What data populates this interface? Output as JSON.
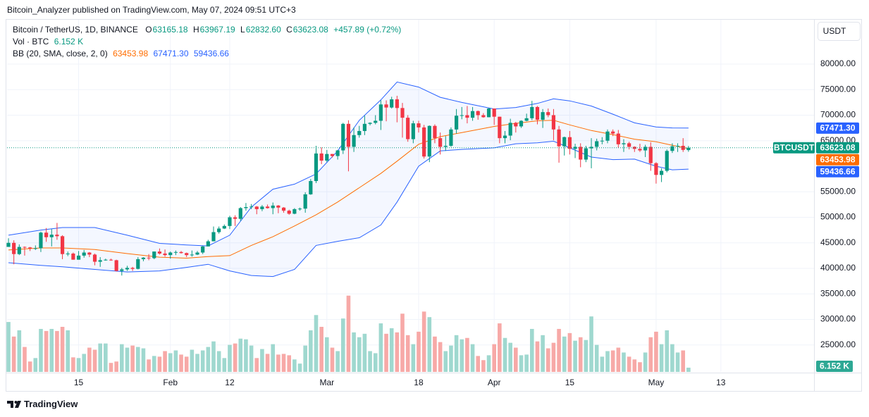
{
  "published": "Bitcoin_Analyzer published on TradingView.com, May 07, 2024 09:51 UTC+3",
  "footer": "TradingView",
  "chart_data": {
    "type": "candlestick",
    "currency": "USDT",
    "symbol_short": "BTCUSDT",
    "legend": {
      "symbol": "Bitcoin / TetherUS, 1D, BINANCE",
      "ohlc_labels": [
        "O",
        "H",
        "L",
        "C"
      ],
      "ohlc_values": [
        "63165.18",
        "63967.19",
        "62832.60",
        "63623.08"
      ],
      "change": "+457.89 (+0.72%)",
      "volume_title": "Vol · BTC",
      "volume_value": "6.152 K",
      "bb_title": "BB (20, SMA, close, 2, 0)",
      "bb_values": [
        "63453.98",
        "67471.30",
        "59436.66"
      ]
    },
    "up_color": "#089981",
    "down_color": "#f23645",
    "volume_up_color": "#9fd8cf",
    "volume_down_color": "#f7a9a7",
    "band_color": "#2962ff",
    "middle_color": "#ff6d00",
    "grid": true,
    "x": [
      "2024-01-02",
      "2024-01-03",
      "2024-01-04",
      "2024-01-05",
      "2024-01-06",
      "2024-01-07",
      "2024-01-08",
      "2024-01-09",
      "2024-01-10",
      "2024-01-11",
      "2024-01-12",
      "2024-01-13",
      "2024-01-14",
      "2024-01-15",
      "2024-01-16",
      "2024-01-17",
      "2024-01-18",
      "2024-01-19",
      "2024-01-20",
      "2024-01-21",
      "2024-01-22",
      "2024-01-23",
      "2024-01-24",
      "2024-01-25",
      "2024-01-26",
      "2024-01-27",
      "2024-01-28",
      "2024-01-29",
      "2024-01-30",
      "2024-01-31",
      "2024-02-01",
      "2024-02-02",
      "2024-02-03",
      "2024-02-04",
      "2024-02-05",
      "2024-02-06",
      "2024-02-07",
      "2024-02-08",
      "2024-02-09",
      "2024-02-10",
      "2024-02-11",
      "2024-02-12",
      "2024-02-13",
      "2024-02-14",
      "2024-02-15",
      "2024-02-16",
      "2024-02-17",
      "2024-02-18",
      "2024-02-19",
      "2024-02-20",
      "2024-02-21",
      "2024-02-22",
      "2024-02-23",
      "2024-02-24",
      "2024-02-25",
      "2024-02-26",
      "2024-02-27",
      "2024-02-28",
      "2024-02-29",
      "2024-03-01",
      "2024-03-02",
      "2024-03-03",
      "2024-03-04",
      "2024-03-05",
      "2024-03-06",
      "2024-03-07",
      "2024-03-08",
      "2024-03-09",
      "2024-03-10",
      "2024-03-11",
      "2024-03-12",
      "2024-03-13",
      "2024-03-14",
      "2024-03-15",
      "2024-03-16",
      "2024-03-17",
      "2024-03-18",
      "2024-03-19",
      "2024-03-20",
      "2024-03-21",
      "2024-03-22",
      "2024-03-23",
      "2024-03-24",
      "2024-03-25",
      "2024-03-26",
      "2024-03-27",
      "2024-03-28",
      "2024-03-29",
      "2024-03-30",
      "2024-03-31",
      "2024-04-01",
      "2024-04-02",
      "2024-04-03",
      "2024-04-04",
      "2024-04-05",
      "2024-04-06",
      "2024-04-07",
      "2024-04-08",
      "2024-04-09",
      "2024-04-10",
      "2024-04-11",
      "2024-04-12",
      "2024-04-13",
      "2024-04-14",
      "2024-04-15",
      "2024-04-16",
      "2024-04-17",
      "2024-04-18",
      "2024-04-19",
      "2024-04-20",
      "2024-04-21",
      "2024-04-22",
      "2024-04-23",
      "2024-04-24",
      "2024-04-25",
      "2024-04-26",
      "2024-04-27",
      "2024-04-28",
      "2024-04-29",
      "2024-04-30",
      "2024-05-01",
      "2024-05-02",
      "2024-05-03",
      "2024-05-04",
      "2024-05-05",
      "2024-05-06",
      "2024-05-07"
    ],
    "open": [
      44200,
      45000,
      42800,
      44200,
      44100,
      43900,
      43950,
      47000,
      46100,
      46600,
      46300,
      42800,
      42900,
      41700,
      42500,
      43100,
      42700,
      41300,
      41600,
      41700,
      41600,
      39500,
      39800,
      40100,
      39900,
      41800,
      42100,
      42000,
      43300,
      42900,
      42600,
      43100,
      43200,
      43000,
      42600,
      42700,
      43100,
      44300,
      45300,
      47100,
      47800,
      48300,
      50000,
      49700,
      51800,
      52000,
      52100,
      51600,
      52100,
      51800,
      52300,
      51900,
      51300,
      50700,
      51600,
      51700,
      54500,
      57100,
      62500,
      61100,
      62400,
      62000,
      63100,
      68300,
      63800,
      66100,
      66900,
      68300,
      68500,
      68900,
      72100,
      71500,
      73100,
      71400,
      69500,
      65300,
      68400,
      67600,
      61900,
      67900,
      65500,
      63800,
      64000,
      67200,
      69900,
      70000,
      69500,
      70800,
      70000,
      69600,
      71300,
      69700,
      65500,
      66000,
      68500,
      67800,
      68900,
      69400,
      71600,
      69100,
      70600,
      70000,
      67200,
      63900,
      65700,
      63400,
      63800,
      61300,
      63500,
      63800,
      64900,
      65000,
      66800,
      66400,
      64300,
      64500,
      63800,
      63400,
      63100,
      63800,
      60600,
      58300,
      59100,
      63000,
      63900,
      64000,
      63165.18
    ],
    "high": [
      45900,
      45500,
      44700,
      44300,
      44200,
      44500,
      47200,
      47900,
      47700,
      48900,
      46500,
      43300,
      43100,
      43400,
      43600,
      43200,
      42900,
      42200,
      41900,
      41900,
      41700,
      40100,
      40500,
      40300,
      42200,
      42200,
      42800,
      43300,
      43900,
      43700,
      43300,
      43500,
      43400,
      43100,
      43500,
      43400,
      44400,
      45600,
      48200,
      48200,
      48600,
      50300,
      50400,
      52000,
      52800,
      52600,
      52200,
      52400,
      52500,
      52900,
      52400,
      52000,
      51500,
      51800,
      51900,
      54900,
      57500,
      64000,
      63700,
      63200,
      62400,
      63200,
      68500,
      69000,
      67600,
      67900,
      69900,
      68600,
      70000,
      72900,
      72900,
      73600,
      73800,
      72400,
      70000,
      68900,
      68900,
      68100,
      68000,
      68200,
      66600,
      65900,
      67600,
      71200,
      71600,
      71800,
      71600,
      70900,
      70400,
      71400,
      71300,
      69700,
      66900,
      69300,
      68700,
      69000,
      70300,
      72800,
      71800,
      71200,
      71300,
      71200,
      67900,
      65800,
      66900,
      64400,
      64500,
      64000,
      65500,
      65400,
      65700,
      67200,
      67200,
      67100,
      65300,
      64800,
      63900,
      64400,
      64200,
      64700,
      60800,
      59600,
      63300,
      64500,
      64500,
      65500,
      63967.19
    ],
    "low": [
      44200,
      40800,
      42600,
      42500,
      43400,
      43600,
      43200,
      45200,
      44300,
      45600,
      41800,
      42400,
      41700,
      41700,
      42100,
      42200,
      40600,
      40300,
      41500,
      41500,
      39400,
      38600,
      39500,
      39500,
      39800,
      41400,
      41600,
      41800,
      42700,
      42300,
      41900,
      42600,
      42900,
      42200,
      42300,
      42600,
      42800,
      44300,
      45300,
      46800,
      47700,
      47700,
      48300,
      49300,
      51300,
      51600,
      50600,
      51200,
      51700,
      50600,
      50800,
      50900,
      50500,
      50600,
      51300,
      50900,
      54400,
      56700,
      60400,
      60800,
      61700,
      61300,
      62400,
      59000,
      62800,
      65600,
      66100,
      68000,
      68200,
      67100,
      68800,
      71300,
      68600,
      65600,
      64800,
      64500,
      66600,
      61500,
      60800,
      64500,
      62300,
      63000,
      63800,
      66400,
      69200,
      68400,
      68900,
      69100,
      69500,
      69600,
      68100,
      64500,
      64500,
      65100,
      66600,
      67500,
      68800,
      69000,
      68200,
      67500,
      69600,
      65100,
      60700,
      62100,
      62300,
      61600,
      59800,
      60800,
      59600,
      63100,
      64300,
      64500,
      65900,
      63600,
      62800,
      63300,
      62800,
      62800,
      61800,
      59100,
      56600,
      56900,
      58800,
      62600,
      62800,
      62800,
      62832.6
    ],
    "close": [
      45000,
      42800,
      44200,
      44100,
      43900,
      43950,
      47000,
      46100,
      46600,
      46300,
      42800,
      42900,
      41700,
      42500,
      43100,
      42700,
      41300,
      41600,
      41700,
      41600,
      39500,
      39800,
      40100,
      39900,
      41800,
      42100,
      42000,
      43300,
      42900,
      42600,
      43100,
      43200,
      43000,
      42600,
      42700,
      43100,
      44300,
      45300,
      47100,
      47800,
      48300,
      50000,
      49700,
      51800,
      52000,
      52100,
      51600,
      52100,
      51800,
      52300,
      51900,
      51300,
      50700,
      51600,
      51700,
      54500,
      57100,
      62500,
      61100,
      62400,
      62000,
      63100,
      68300,
      63800,
      66100,
      66900,
      68300,
      68500,
      68900,
      72100,
      71500,
      73100,
      71400,
      69500,
      65300,
      68400,
      67600,
      61900,
      67900,
      65500,
      63800,
      64000,
      67200,
      69900,
      70000,
      69500,
      70800,
      70000,
      69600,
      71300,
      69700,
      65500,
      66000,
      68500,
      67800,
      68900,
      69400,
      71600,
      69100,
      70600,
      70000,
      67200,
      63900,
      65700,
      63400,
      63800,
      61300,
      63500,
      63800,
      64900,
      65000,
      66800,
      66400,
      64300,
      64500,
      63800,
      63400,
      63100,
      63800,
      60600,
      58300,
      59100,
      63000,
      63900,
      64000,
      63200,
      63623.08
    ],
    "volume": [
      72,
      51,
      60,
      36,
      15,
      20,
      62,
      59,
      62,
      59,
      65,
      60,
      21,
      20,
      26,
      35,
      32,
      41,
      41,
      13,
      15,
      40,
      35,
      38,
      36,
      34,
      18,
      23,
      22,
      30,
      27,
      31,
      25,
      22,
      32,
      26,
      31,
      36,
      44,
      30,
      20,
      39,
      41,
      48,
      47,
      38,
      20,
      33,
      26,
      40,
      25,
      26,
      24,
      18,
      12,
      38,
      60,
      82,
      65,
      50,
      35,
      30,
      77,
      110,
      57,
      50,
      55,
      30,
      27,
      70,
      55,
      63,
      57,
      84,
      53,
      40,
      58,
      87,
      79,
      51,
      43,
      30,
      38,
      53,
      47,
      49,
      40,
      23,
      17,
      24,
      40,
      70,
      49,
      42,
      35,
      24,
      25,
      62,
      44,
      53,
      34,
      42,
      62,
      51,
      56,
      45,
      50,
      46,
      80,
      39,
      22,
      30,
      31,
      35,
      28,
      22,
      18,
      14,
      28,
      50,
      58,
      40,
      60,
      40,
      28,
      31,
      6.152
    ],
    "volume_lim": [
      0,
      130
    ],
    "bands": {
      "x": [
        "2024-01-02",
        "2024-01-08",
        "2024-01-12",
        "2024-01-18",
        "2024-01-24",
        "2024-01-30",
        "2024-02-04",
        "2024-02-08",
        "2024-02-12",
        "2024-02-16",
        "2024-02-20",
        "2024-02-24",
        "2024-02-28",
        "2024-03-03",
        "2024-03-07",
        "2024-03-11",
        "2024-03-14",
        "2024-03-18",
        "2024-03-22",
        "2024-03-26",
        "2024-04-01",
        "2024-04-05",
        "2024-04-09",
        "2024-04-12",
        "2024-04-15",
        "2024-04-19",
        "2024-04-23",
        "2024-04-27",
        "2024-05-01",
        "2024-05-04",
        "2024-05-07"
      ],
      "upper": [
        46500,
        47500,
        48000,
        48000,
        46500,
        44900,
        44600,
        44400,
        46500,
        52000,
        55500,
        56500,
        58500,
        63000,
        69000,
        73000,
        76500,
        75500,
        73500,
        72500,
        71200,
        71500,
        72300,
        73200,
        72800,
        71800,
        70200,
        68500,
        67700,
        67500,
        67471.3
      ],
      "middle": [
        43600,
        44000,
        44000,
        43700,
        42900,
        42200,
        42000,
        42300,
        42500,
        44500,
        46200,
        48300,
        50500,
        53000,
        55800,
        58600,
        61000,
        64300,
        65800,
        66600,
        67800,
        68400,
        68900,
        69000,
        68100,
        67000,
        66200,
        65300,
        64800,
        64100,
        63453.98
      ],
      "lower": [
        41100,
        40600,
        40300,
        39800,
        39300,
        39500,
        40200,
        40800,
        39500,
        38600,
        38400,
        39800,
        44500,
        45300,
        46000,
        48500,
        53000,
        60000,
        63000,
        63300,
        63600,
        64400,
        64600,
        64900,
        63600,
        61800,
        61300,
        61400,
        60000,
        59300,
        59436.66
      ]
    },
    "xlim": [
      "2024-01-02",
      "2024-05-30"
    ],
    "xticks": [
      {
        "value": "2024-01-15",
        "label": "15"
      },
      {
        "value": "2024-02-01",
        "label": "Feb"
      },
      {
        "value": "2024-02-12",
        "label": "12"
      },
      {
        "value": "2024-03-01",
        "label": "Mar"
      },
      {
        "value": "2024-03-18",
        "label": "18"
      },
      {
        "value": "2024-04-01",
        "label": "Apr"
      },
      {
        "value": "2024-04-15",
        "label": "15"
      },
      {
        "value": "2024-05-01",
        "label": "May"
      },
      {
        "value": "2024-05-13",
        "label": "13"
      }
    ],
    "ylim": [
      19724,
      88690
    ],
    "yticks": [
      {
        "value": 25000,
        "label": "25000.00"
      },
      {
        "value": 30000,
        "label": "30000.00"
      },
      {
        "value": 35000,
        "label": "35000.00"
      },
      {
        "value": 40000,
        "label": "40000.00"
      },
      {
        "value": 45000,
        "label": "45000.00"
      },
      {
        "value": 50000,
        "label": "50000.00"
      },
      {
        "value": 55000,
        "label": "55000.00"
      },
      {
        "value": 65000,
        "label": "65000.00"
      },
      {
        "value": 70000,
        "label": "70000.00"
      },
      {
        "value": 75000,
        "label": "75000.00"
      },
      {
        "value": 80000,
        "label": "80000.00"
      }
    ]
  }
}
